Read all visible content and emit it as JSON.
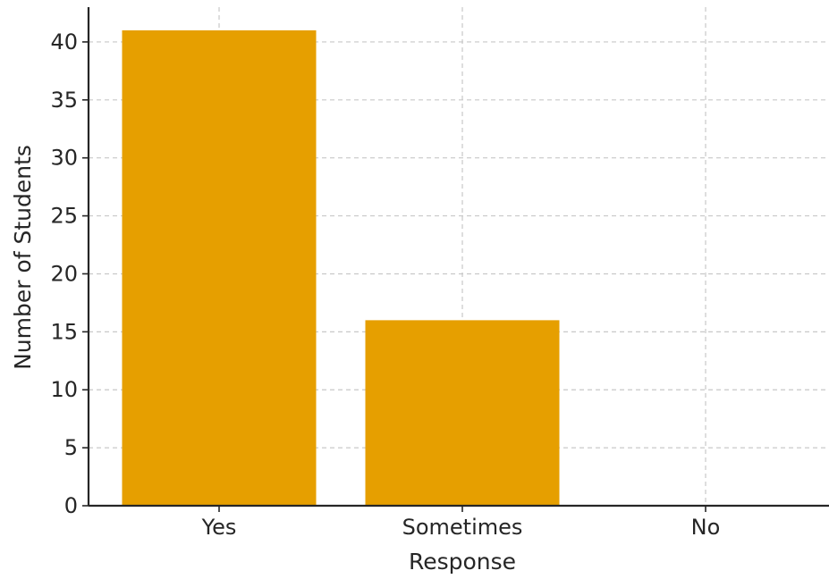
{
  "chart_data": {
    "type": "bar",
    "title": "",
    "xlabel": "Response",
    "ylabel": "Number of Students",
    "categories": [
      "Yes",
      "Sometimes",
      "No"
    ],
    "values": [
      41,
      16,
      0
    ],
    "ylim": [
      0,
      43
    ],
    "yticks": [
      0,
      5,
      10,
      15,
      20,
      25,
      30,
      35,
      40
    ],
    "grid": true,
    "colors": {
      "bar": "#E69F00",
      "grid": "#c8c8c8",
      "axis": "#262626",
      "text": "#262626"
    }
  }
}
